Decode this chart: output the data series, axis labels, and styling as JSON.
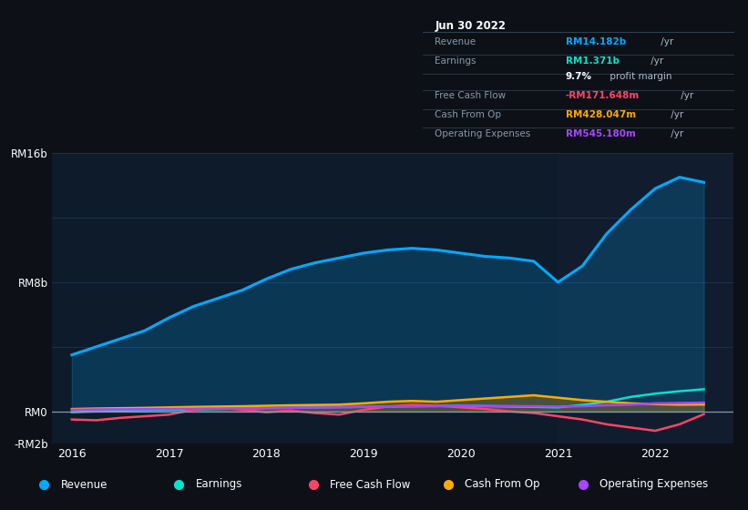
{
  "bg_color": "#0d1117",
  "chart_bg": "#0d1b2a",
  "grid_color": "#1e3050",
  "x_years": [
    2016.0,
    2016.25,
    2016.5,
    2016.75,
    2017.0,
    2017.25,
    2017.5,
    2017.75,
    2018.0,
    2018.25,
    2018.5,
    2018.75,
    2019.0,
    2019.25,
    2019.5,
    2019.75,
    2020.0,
    2020.25,
    2020.5,
    2020.75,
    2021.0,
    2021.25,
    2021.5,
    2021.75,
    2022.0,
    2022.25,
    2022.5
  ],
  "revenue": [
    3.5,
    4.0,
    4.5,
    5.0,
    5.8,
    6.5,
    7.0,
    7.5,
    8.2,
    8.8,
    9.2,
    9.5,
    9.8,
    10.0,
    10.1,
    10.0,
    9.8,
    9.6,
    9.5,
    9.3,
    8.0,
    9.0,
    11.0,
    12.5,
    13.8,
    14.5,
    14.182
  ],
  "earnings": [
    -0.05,
    0.0,
    0.05,
    0.08,
    0.1,
    0.12,
    0.15,
    0.18,
    0.2,
    0.22,
    0.25,
    0.27,
    0.28,
    0.3,
    0.32,
    0.33,
    0.35,
    0.33,
    0.3,
    0.28,
    0.25,
    0.4,
    0.6,
    0.9,
    1.1,
    1.25,
    1.371
  ],
  "free_cash_flow": [
    -0.5,
    -0.55,
    -0.4,
    -0.3,
    -0.2,
    0.1,
    0.25,
    0.1,
    -0.05,
    0.05,
    -0.1,
    -0.2,
    0.1,
    0.3,
    0.4,
    0.35,
    0.25,
    0.15,
    0.0,
    -0.1,
    -0.3,
    -0.5,
    -0.8,
    -1.0,
    -1.2,
    -0.8,
    -0.1716
  ],
  "cash_from_op": [
    0.15,
    0.18,
    0.2,
    0.22,
    0.25,
    0.28,
    0.3,
    0.32,
    0.35,
    0.38,
    0.4,
    0.42,
    0.5,
    0.6,
    0.65,
    0.6,
    0.7,
    0.8,
    0.9,
    1.0,
    0.85,
    0.7,
    0.6,
    0.5,
    0.45,
    0.42,
    0.428
  ],
  "operating_expenses": [
    0.1,
    0.12,
    0.13,
    0.14,
    0.15,
    0.16,
    0.17,
    0.18,
    0.2,
    0.22,
    0.24,
    0.25,
    0.28,
    0.3,
    0.32,
    0.33,
    0.35,
    0.34,
    0.33,
    0.32,
    0.3,
    0.32,
    0.38,
    0.42,
    0.5,
    0.52,
    0.5452
  ],
  "revenue_color": "#00aaff",
  "earnings_color": "#00e5cc",
  "free_cash_flow_color": "#ff4466",
  "cash_from_op_color": "#ffaa00",
  "operating_expenses_color": "#aa44ff",
  "y_min": -2.0,
  "y_max": 16.0,
  "x_min": 2015.8,
  "x_max": 2022.8,
  "highlight_start": 2021.0,
  "highlight_end": 2022.8,
  "ytick_vals": [
    16,
    8,
    0,
    -2
  ],
  "ytick_labels": [
    "RM16b",
    "RM8b",
    "RM0",
    "-RM2b"
  ],
  "xtick_labels": [
    "2016",
    "2017",
    "2018",
    "2019",
    "2020",
    "2021",
    "2022"
  ],
  "xtick_values": [
    2016,
    2017,
    2018,
    2019,
    2020,
    2021,
    2022
  ],
  "infobox": {
    "date": "Jun 30 2022",
    "rows": [
      {
        "label": "Revenue",
        "value": "RM14.182b",
        "unit": " /yr",
        "value_color": "#00aaff"
      },
      {
        "label": "Earnings",
        "value": "RM1.371b",
        "unit": " /yr",
        "value_color": "#00e5cc"
      },
      {
        "label": "",
        "value": "9.7%",
        "unit": " profit margin",
        "value_color": "#ffffff"
      },
      {
        "label": "Free Cash Flow",
        "value": "-RM171.648m",
        "unit": " /yr",
        "value_color": "#ff4466"
      },
      {
        "label": "Cash From Op",
        "value": "RM428.047m",
        "unit": " /yr",
        "value_color": "#ffaa00"
      },
      {
        "label": "Operating Expenses",
        "value": "RM545.180m",
        "unit": " /yr",
        "value_color": "#aa44ff"
      }
    ]
  },
  "legend_items": [
    {
      "label": "Revenue",
      "color": "#00aaff"
    },
    {
      "label": "Earnings",
      "color": "#00e5cc"
    },
    {
      "label": "Free Cash Flow",
      "color": "#ff4466"
    },
    {
      "label": "Cash From Op",
      "color": "#ffaa00"
    },
    {
      "label": "Operating Expenses",
      "color": "#aa44ff"
    }
  ]
}
